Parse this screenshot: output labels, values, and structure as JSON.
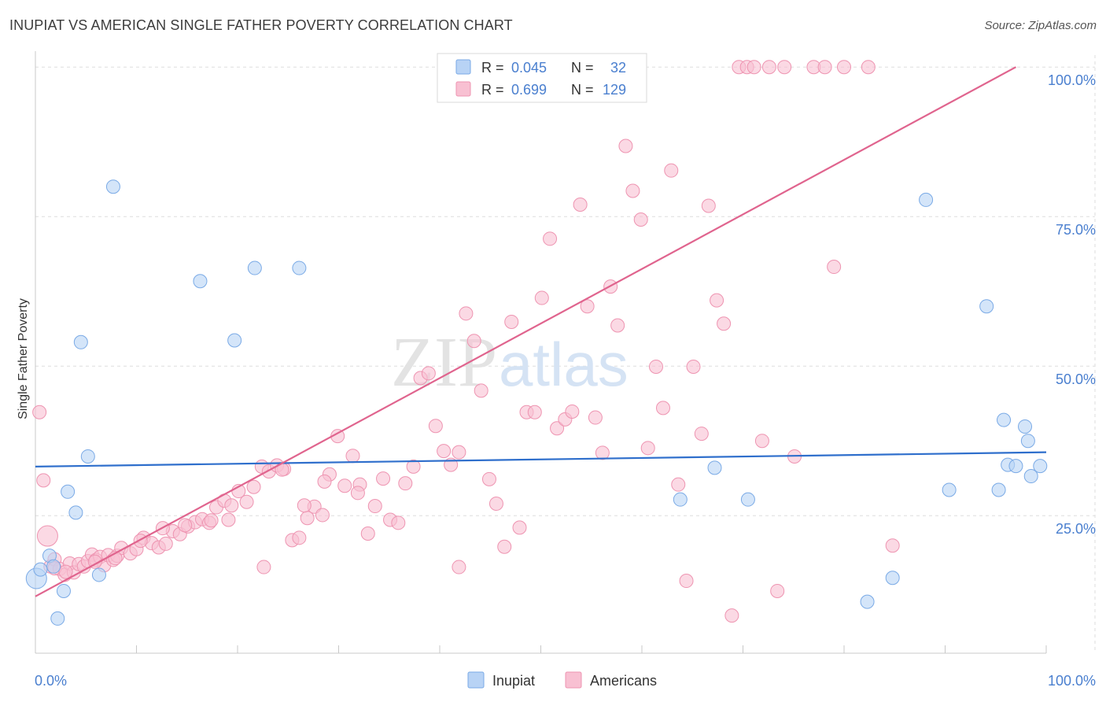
{
  "header": {
    "title": "INUPIAT VS AMERICAN SINGLE FATHER POVERTY CORRELATION CHART",
    "source": "Source: ZipAtlas.com"
  },
  "watermark": {
    "zip": "ZIP",
    "atlas": "atlas"
  },
  "legend_box": {
    "rows": [
      {
        "r_label": "R =",
        "r_value": "0.045",
        "n_label": "N =",
        "n_value": "32"
      },
      {
        "r_label": "R =",
        "r_value": "0.699",
        "n_label": "N =",
        "n_value": "129"
      }
    ]
  },
  "colors": {
    "inupiat_fill": "#b8d3f5",
    "inupiat_stroke": "#7aaae6",
    "inupiat_line": "#2f6fcc",
    "americans_fill": "#f8c0d2",
    "americans_stroke": "#ee94b1",
    "americans_line": "#e0648e",
    "axis_text": "#4a7fcf",
    "grid": "#dddddd"
  },
  "chart_data": {
    "type": "scatter",
    "title": "INUPIAT VS AMERICAN SINGLE FATHER POVERTY CORRELATION CHART",
    "xlabel": "",
    "ylabel": "Single Father Poverty",
    "xlim": [
      0,
      100
    ],
    "ylim": [
      2,
      102
    ],
    "x_tick_labels": [
      "0.0%",
      "100.0%"
    ],
    "y_ticks": [
      25,
      50,
      75,
      100
    ],
    "y_tick_labels": [
      "25.0%",
      "50.0%",
      "75.0%",
      "100.0%"
    ],
    "grid": true,
    "legend": "bottom-center",
    "series": [
      {
        "name": "Inupiat",
        "r": 0.045,
        "n": 32,
        "trend": {
          "x": [
            0,
            100
          ],
          "y": [
            33.2,
            35.6
          ]
        },
        "points": [
          [
            0.1,
            14.5
          ],
          [
            0.5,
            16
          ],
          [
            1.4,
            18.3
          ],
          [
            1.8,
            16.5
          ],
          [
            2.2,
            7.8
          ],
          [
            2.8,
            12.4
          ],
          [
            3.2,
            29
          ],
          [
            4,
            25.5
          ],
          [
            4.5,
            54
          ],
          [
            5.2,
            34.9
          ],
          [
            6.3,
            15.1
          ],
          [
            7.7,
            80
          ],
          [
            16.3,
            64.2
          ],
          [
            19.7,
            54.3
          ],
          [
            21.7,
            66.4
          ],
          [
            26.1,
            66.4
          ],
          [
            67.2,
            33
          ],
          [
            63.8,
            27.7
          ],
          [
            70.5,
            27.7
          ],
          [
            90.4,
            29.3
          ],
          [
            95.8,
            41
          ],
          [
            97.9,
            39.9
          ],
          [
            98.2,
            37.5
          ],
          [
            88.1,
            77.8
          ],
          [
            94.1,
            60
          ],
          [
            95.3,
            29.3
          ],
          [
            96.2,
            33.5
          ],
          [
            97,
            33.3
          ],
          [
            98.5,
            31.6
          ],
          [
            99.4,
            33.3
          ],
          [
            84.8,
            14.6
          ],
          [
            82.3,
            10.6
          ]
        ]
      },
      {
        "name": "Americans",
        "r": 0.699,
        "n": 129,
        "trend": {
          "x": [
            0,
            97
          ],
          "y": [
            11.5,
            100
          ]
        },
        "points": [
          [
            0.4,
            42.3
          ],
          [
            0.8,
            30.9
          ],
          [
            1.2,
            21.6
          ],
          [
            1.5,
            16.5
          ],
          [
            1.9,
            17.7
          ],
          [
            2.4,
            16.1
          ],
          [
            2.9,
            15.1
          ],
          [
            3.4,
            17
          ],
          [
            3.8,
            15.5
          ],
          [
            4.3,
            16.9
          ],
          [
            4.8,
            16.5
          ],
          [
            5.2,
            17.4
          ],
          [
            5.6,
            18.5
          ],
          [
            6,
            17.6
          ],
          [
            6.4,
            18.1
          ],
          [
            6.8,
            16.7
          ],
          [
            7.2,
            18.4
          ],
          [
            7.7,
            17.6
          ],
          [
            8.1,
            18.3
          ],
          [
            8.5,
            19.6
          ],
          [
            9.4,
            18.7
          ],
          [
            10,
            19.4
          ],
          [
            10.7,
            21.3
          ],
          [
            11.5,
            20.4
          ],
          [
            12.2,
            19.7
          ],
          [
            12.9,
            20.3
          ],
          [
            13.6,
            22.4
          ],
          [
            14.3,
            21.9
          ],
          [
            15.1,
            23.2
          ],
          [
            15.8,
            23.9
          ],
          [
            16.5,
            24.4
          ],
          [
            17.2,
            23.8
          ],
          [
            17.9,
            26.4
          ],
          [
            18.7,
            27.5
          ],
          [
            19.4,
            26.7
          ],
          [
            20.1,
            29.1
          ],
          [
            20.9,
            27.3
          ],
          [
            21.6,
            29.8
          ],
          [
            22.4,
            33.2
          ],
          [
            23.1,
            32.4
          ],
          [
            23.9,
            33.4
          ],
          [
            24.6,
            32.8
          ],
          [
            25.4,
            20.9
          ],
          [
            26.1,
            21.3
          ],
          [
            26.9,
            24.6
          ],
          [
            27.6,
            26.5
          ],
          [
            28.4,
            25.1
          ],
          [
            29.1,
            31.9
          ],
          [
            29.9,
            38.3
          ],
          [
            30.6,
            30
          ],
          [
            31.4,
            35
          ],
          [
            32.1,
            30.2
          ],
          [
            32.9,
            22
          ],
          [
            33.6,
            26.6
          ],
          [
            34.4,
            31.2
          ],
          [
            35.1,
            24.3
          ],
          [
            35.9,
            23.8
          ],
          [
            36.6,
            30.4
          ],
          [
            37.4,
            33.2
          ],
          [
            38.1,
            48
          ],
          [
            38.9,
            48.8
          ],
          [
            39.6,
            40
          ],
          [
            40.4,
            35.8
          ],
          [
            41.1,
            33.5
          ],
          [
            41.9,
            35.6
          ],
          [
            42.6,
            58.8
          ],
          [
            43.4,
            54.2
          ],
          [
            44.1,
            45.9
          ],
          [
            44.9,
            31.1
          ],
          [
            45.6,
            27
          ],
          [
            46.4,
            19.8
          ],
          [
            47.1,
            57.4
          ],
          [
            47.9,
            23
          ],
          [
            48.6,
            42.3
          ],
          [
            49.4,
            42.3
          ],
          [
            50.1,
            61.4
          ],
          [
            50.9,
            71.3
          ],
          [
            51.6,
            39.6
          ],
          [
            52.4,
            41.1
          ],
          [
            53.1,
            42.4
          ],
          [
            53.9,
            77
          ],
          [
            54.6,
            60
          ],
          [
            55.4,
            41.4
          ],
          [
            56.1,
            35.5
          ],
          [
            56.9,
            63.3
          ],
          [
            57.6,
            56.8
          ],
          [
            58.4,
            86.8
          ],
          [
            59.1,
            79.3
          ],
          [
            59.9,
            74.5
          ],
          [
            60.6,
            36.3
          ],
          [
            61.4,
            49.9
          ],
          [
            62.1,
            43
          ],
          [
            62.9,
            82.7
          ],
          [
            63.6,
            30.2
          ],
          [
            64.4,
            14.1
          ],
          [
            65.1,
            49.9
          ],
          [
            65.9,
            38.7
          ],
          [
            66.6,
            76.8
          ],
          [
            67.4,
            61
          ],
          [
            68.1,
            57.1
          ],
          [
            68.9,
            8.3
          ],
          [
            69.6,
            100
          ],
          [
            70.4,
            100
          ],
          [
            71.1,
            100
          ],
          [
            71.9,
            37.5
          ],
          [
            72.6,
            100
          ],
          [
            73.4,
            12.4
          ],
          [
            74.1,
            100
          ],
          [
            75.1,
            34.9
          ],
          [
            77,
            100
          ],
          [
            78.1,
            100
          ],
          [
            79,
            66.6
          ],
          [
            80,
            100
          ],
          [
            82.4,
            100
          ],
          [
            84.8,
            20
          ],
          [
            1.9,
            16.2
          ],
          [
            3,
            15.6
          ],
          [
            5.9,
            17.3
          ],
          [
            7.9,
            17.9
          ],
          [
            10.4,
            20.8
          ],
          [
            12.6,
            22.9
          ],
          [
            14.8,
            23.4
          ],
          [
            17.4,
            24.2
          ],
          [
            19.1,
            24.3
          ],
          [
            22.6,
            16.4
          ],
          [
            24.4,
            32.7
          ],
          [
            26.6,
            26.7
          ],
          [
            28.6,
            30.7
          ],
          [
            31.9,
            28.8
          ],
          [
            41.9,
            16.4
          ]
        ]
      }
    ]
  }
}
